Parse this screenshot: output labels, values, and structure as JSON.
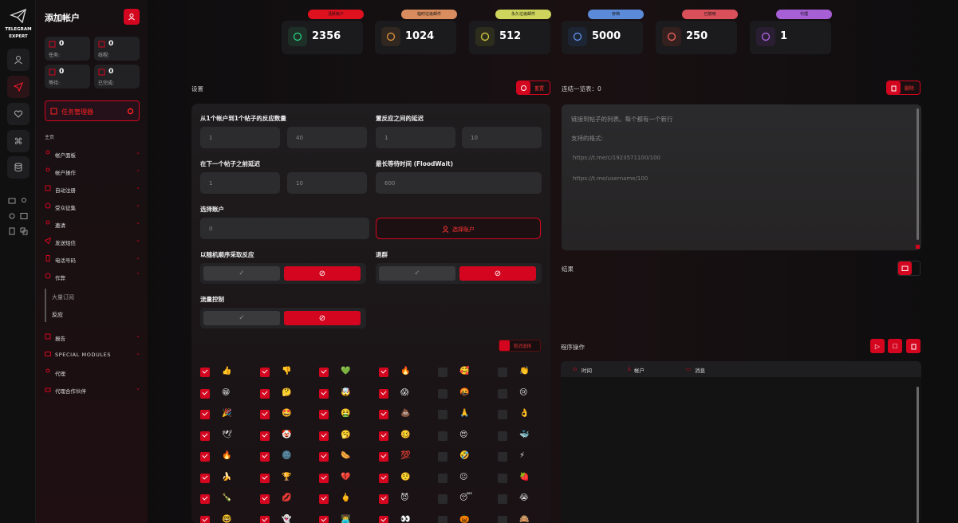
{
  "app": {
    "logo_text_1": "TELEGRAM",
    "logo_text_2": "EXPERT",
    "colors": {
      "accent": "#d4061f",
      "bg": "#0d0d0e"
    }
  },
  "sidebar": {
    "title": "添加帐户",
    "stats": [
      {
        "value": "0",
        "label": "任务:"
      },
      {
        "value": "0",
        "label": "线程:"
      },
      {
        "value": "0",
        "label": "等待:"
      },
      {
        "value": "0",
        "label": "已完成:"
      }
    ],
    "task_manager": "任务管理器",
    "menu_heading": "主页",
    "menu": [
      {
        "label": "帐户面板",
        "icon": "accounts-icon"
      },
      {
        "label": "帐户操作",
        "icon": "account-actions-icon"
      },
      {
        "label": "自动注册",
        "icon": "auto-register-icon"
      },
      {
        "label": "受众征集",
        "icon": "audience-icon"
      },
      {
        "label": "邀请",
        "icon": "invite-icon"
      },
      {
        "label": "发送短信",
        "icon": "send-icon"
      },
      {
        "label": "电话号码",
        "icon": "phone-icon"
      },
      {
        "label": "作弊",
        "icon": "cheat-icon"
      }
    ],
    "submenu": [
      "大量订阅",
      "反应"
    ],
    "menu2": [
      {
        "label": "报告",
        "icon": "report-icon"
      },
      {
        "label": "SPECIAL MODULES",
        "icon": "modules-icon"
      },
      {
        "label": "代理",
        "icon": "proxy-icon"
      },
      {
        "label": "代理合作伙伴",
        "icon": "partner-icon"
      }
    ]
  },
  "top_cards": [
    {
      "pill": "活跃帐户",
      "value": "2356",
      "pill_color": "#e0111f",
      "icon_color": "#27c07a",
      "icon_bg": "#1e2f27"
    },
    {
      "pill": "临时垃圾邮件",
      "value": "1024",
      "pill_color": "#d98d5f",
      "icon_color": "#d38a3c",
      "icon_bg": "#2f2720"
    },
    {
      "pill": "永久垃圾邮件",
      "value": "512",
      "pill_color": "#cfd55c",
      "icon_color": "#c9c33f",
      "icon_bg": "#2d2d1e"
    },
    {
      "pill": "存档",
      "value": "5000",
      "pill_color": "#5b8ad8",
      "icon_color": "#5b8ad8",
      "icon_bg": "#1d2535"
    },
    {
      "pill": "已禁用",
      "value": "250",
      "pill_color": "#d9505a",
      "icon_color": "#e45b5b",
      "icon_bg": "#33201f"
    },
    {
      "pill": "代理",
      "value": "1",
      "pill_color": "#a75fd6",
      "icon_color": "#a75fd6",
      "icon_bg": "#2a1e33"
    }
  ],
  "settings": {
    "label": "设置",
    "reset_btn": "重置",
    "f1": "从1个帐户到1个帖子的反应数量",
    "f1_min": "1",
    "f1_max": "40",
    "f2": "置反应之间的延迟",
    "f2_min": "1",
    "f2_max": "10",
    "f3": "在下一个帖子之前延迟",
    "f3_min": "1",
    "f3_max": "10",
    "f4": "最长等待时间 (FloodWait)",
    "f4_val": "600",
    "f5": "选择账户",
    "f5_val": "0",
    "select_btn": "选择账户",
    "f6": "以随机顺序采取反应",
    "f7": "退群",
    "f8": "流量控制",
    "select_all": "取消选择"
  },
  "emojis": [
    [
      "👍",
      "👎",
      "💚",
      "🔥",
      "🥰",
      "👏"
    ],
    [
      "😁",
      "🤔",
      "🤯",
      "😱",
      "🤬",
      "😢"
    ],
    [
      "🎉",
      "🤩",
      "🤮",
      "💩",
      "🙏",
      "👌"
    ],
    [
      "🕊",
      "🤡",
      "🥱",
      "🥴",
      "😍",
      "🐳"
    ],
    [
      "🔥",
      "🌚",
      "🌭",
      "💯",
      "🤣",
      "⚡"
    ],
    [
      "🍌",
      "🏆",
      "💔",
      "🤨",
      "😐",
      "🍓"
    ],
    [
      "🍾",
      "💋",
      "🖕",
      "😈",
      "😴",
      "😭"
    ],
    [
      "🤓",
      "👻",
      "👨‍💻",
      "👀",
      "🎃",
      "🙈"
    ]
  ],
  "emoji_checked": [
    [
      true,
      true,
      true,
      true,
      false,
      false
    ],
    [
      true,
      true,
      true,
      true,
      false,
      false
    ],
    [
      true,
      true,
      true,
      true,
      false,
      false
    ],
    [
      true,
      true,
      true,
      true,
      false,
      false
    ],
    [
      true,
      true,
      true,
      true,
      false,
      false
    ],
    [
      true,
      true,
      true,
      true,
      false,
      false
    ],
    [
      true,
      true,
      true,
      true,
      false,
      false
    ],
    [
      true,
      true,
      true,
      true,
      false,
      false
    ]
  ],
  "links": {
    "label": "连结一览表：0",
    "delete_btn": "删除",
    "placeholder_1": "链接到帖子的列表。每个都有一个新行",
    "placeholder_2": "支持的格式:",
    "example_1": "https://t.me/c/1923571100/100",
    "example_2": "https://t.me/username/100"
  },
  "results": {
    "label": "结果"
  },
  "program": {
    "label": "程序操作",
    "col_time": "时间",
    "col_account": "帐户",
    "col_message": "消息"
  }
}
